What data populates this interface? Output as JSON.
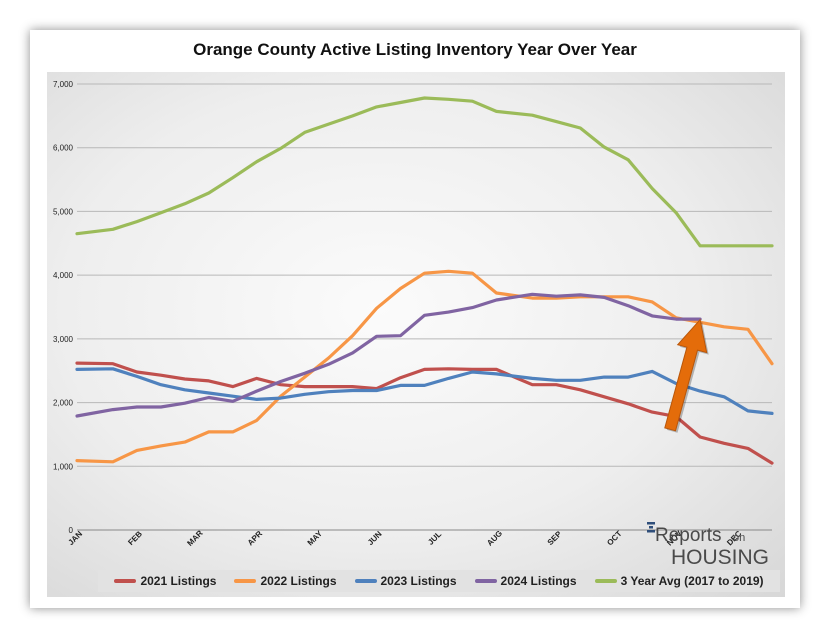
{
  "title": "Orange County Active Listing Inventory Year Over Year",
  "logo": {
    "line1": "Reports",
    "line1_small": "on",
    "line2": "HOUSING"
  },
  "chart_data": {
    "type": "line",
    "title": "Orange County Active Listing Inventory Year Over Year",
    "xlabel": "",
    "ylabel": "",
    "ylim": [
      0,
      7000
    ],
    "yticks": [
      0,
      1000,
      2000,
      3000,
      4000,
      5000,
      6000,
      7000
    ],
    "ytick_labels": [
      "0",
      "1,000",
      "2,000",
      "3,000",
      "4,000",
      "5,000",
      "6,000",
      "7,000"
    ],
    "month_labels": [
      "JAN",
      "FEB",
      "MAR",
      "APR",
      "MAY",
      "JUN",
      "JUL",
      "AUG",
      "SEP",
      "OCT",
      "NOV",
      "DEC"
    ],
    "x_unit": "month",
    "xlim": [
      1,
      12.6
    ],
    "grid": true,
    "legend_position": "bottom",
    "series": [
      {
        "name": "2021 Listings",
        "color": "#c0504d",
        "x": [
          1.0,
          1.6,
          2.0,
          2.4,
          2.8,
          3.2,
          3.6,
          4.0,
          4.4,
          4.8,
          5.2,
          5.6,
          6.0,
          6.4,
          6.8,
          7.2,
          7.6,
          8.0,
          8.6,
          9.0,
          9.4,
          9.8,
          10.2,
          10.6,
          11.0,
          11.4,
          11.8,
          12.2,
          12.6
        ],
        "values": [
          2620,
          2610,
          2480,
          2430,
          2370,
          2340,
          2250,
          2380,
          2280,
          2250,
          2250,
          2250,
          2220,
          2390,
          2520,
          2530,
          2520,
          2520,
          2280,
          2280,
          2200,
          2090,
          1980,
          1850,
          1780,
          1460,
          1360,
          1280,
          1050
        ]
      },
      {
        "name": "2022 Listings",
        "color": "#f79646",
        "x": [
          1.0,
          1.6,
          2.0,
          2.4,
          2.8,
          3.2,
          3.6,
          4.0,
          4.4,
          4.8,
          5.2,
          5.6,
          6.0,
          6.4,
          6.8,
          7.2,
          7.6,
          8.0,
          8.6,
          9.0,
          9.4,
          9.8,
          10.2,
          10.6,
          11.0,
          11.4,
          11.8,
          12.2,
          12.6
        ],
        "values": [
          1090,
          1070,
          1250,
          1320,
          1380,
          1540,
          1540,
          1720,
          2100,
          2400,
          2700,
          3050,
          3480,
          3790,
          4030,
          4060,
          4030,
          3720,
          3640,
          3640,
          3660,
          3660,
          3660,
          3580,
          3330,
          3260,
          3190,
          3150,
          2610
        ]
      },
      {
        "name": "2023 Listings",
        "color": "#4f81bd",
        "x": [
          1.0,
          1.6,
          2.0,
          2.4,
          2.8,
          3.2,
          3.6,
          4.0,
          4.4,
          4.8,
          5.2,
          5.6,
          6.0,
          6.4,
          6.8,
          7.2,
          7.6,
          8.0,
          8.6,
          9.0,
          9.4,
          9.8,
          10.2,
          10.6,
          11.0,
          11.4,
          11.8,
          12.2,
          12.6
        ],
        "values": [
          2520,
          2530,
          2410,
          2280,
          2200,
          2150,
          2100,
          2050,
          2070,
          2130,
          2170,
          2190,
          2190,
          2270,
          2270,
          2380,
          2480,
          2450,
          2380,
          2350,
          2350,
          2400,
          2400,
          2490,
          2300,
          2180,
          2090,
          1870,
          1830
        ]
      },
      {
        "name": "2024 Listings",
        "color": "#8064a2",
        "x": [
          1.0,
          1.6,
          2.0,
          2.4,
          2.8,
          3.2,
          3.6,
          4.0,
          4.4,
          4.8,
          5.2,
          5.6,
          6.0,
          6.4,
          6.8,
          7.2,
          7.6,
          8.0,
          8.6,
          9.0,
          9.4,
          9.8,
          10.2,
          10.6,
          11.0,
          11.4
        ],
        "values": [
          1790,
          1890,
          1930,
          1930,
          1990,
          2080,
          2020,
          2180,
          2330,
          2460,
          2600,
          2780,
          3040,
          3050,
          3370,
          3420,
          3490,
          3610,
          3700,
          3670,
          3690,
          3650,
          3520,
          3360,
          3310,
          3310
        ]
      },
      {
        "name": "3 Year Avg (2017 to 2019)",
        "color": "#9bbb59",
        "x": [
          1.0,
          1.6,
          2.0,
          2.4,
          2.8,
          3.2,
          3.6,
          4.0,
          4.4,
          4.8,
          5.2,
          5.6,
          6.0,
          6.4,
          6.8,
          7.2,
          7.6,
          8.0,
          8.6,
          9.0,
          9.4,
          9.8,
          10.2,
          10.6,
          11.0,
          11.4,
          11.8,
          12.2,
          12.6
        ],
        "values": [
          4650,
          4720,
          4840,
          4980,
          5120,
          5290,
          5530,
          5780,
          5990,
          6240,
          6370,
          6500,
          6640,
          6710,
          6780,
          6760,
          6730,
          6570,
          6510,
          6410,
          6310,
          6010,
          5810,
          5360,
          4980,
          4460,
          4460,
          4460,
          4460
        ]
      }
    ],
    "annotation": {
      "type": "arrow",
      "color": "#e46c0a",
      "x_from": 10.9,
      "y_from": 1580,
      "x_to": 11.4,
      "y_to": 3300
    }
  }
}
